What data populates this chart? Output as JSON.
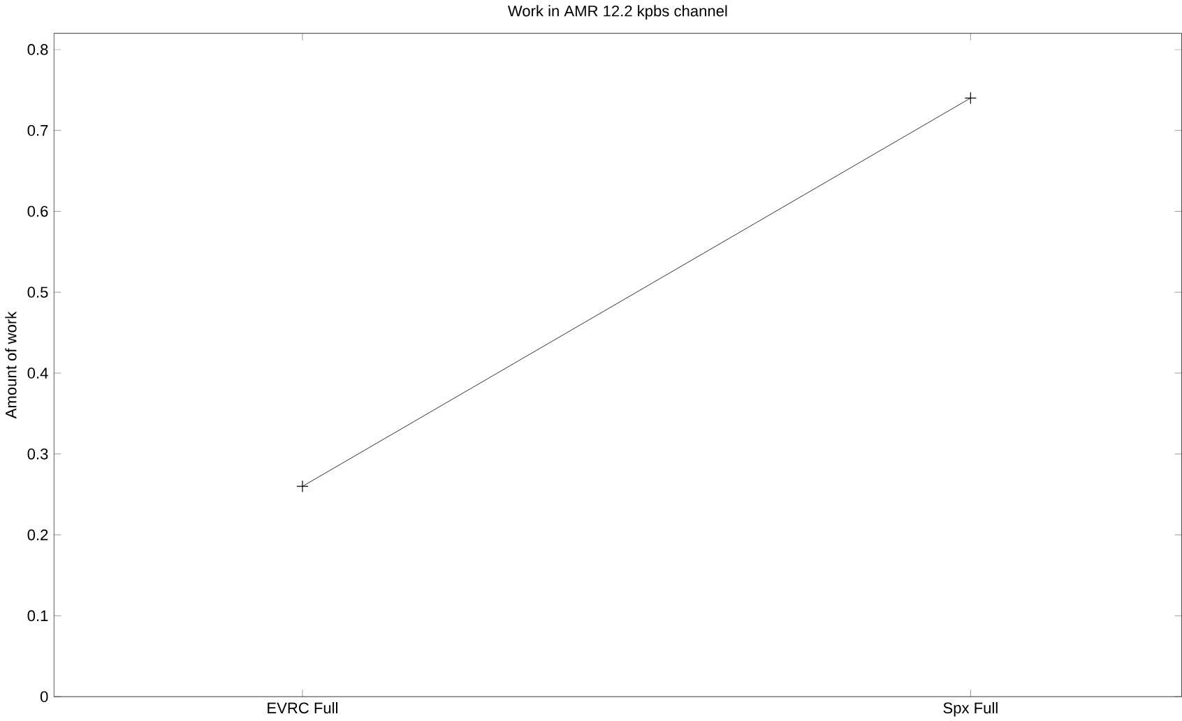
{
  "chart_data": {
    "type": "line",
    "title": "Work in AMR 12.2 kpbs channel",
    "ylabel": "Amount of work",
    "categories": [
      "EVRC Full",
      "Spx Full"
    ],
    "series": [
      {
        "color": "#000000",
        "values": [
          0.26,
          0.74
        ]
      }
    ],
    "ylim": [
      0,
      0.82
    ],
    "yticks": [
      0,
      0.1,
      0.2,
      0.3,
      0.4,
      0.5,
      0.6,
      0.7,
      0.8
    ],
    "marker": "cross",
    "line_style": "solid",
    "grid": false
  }
}
